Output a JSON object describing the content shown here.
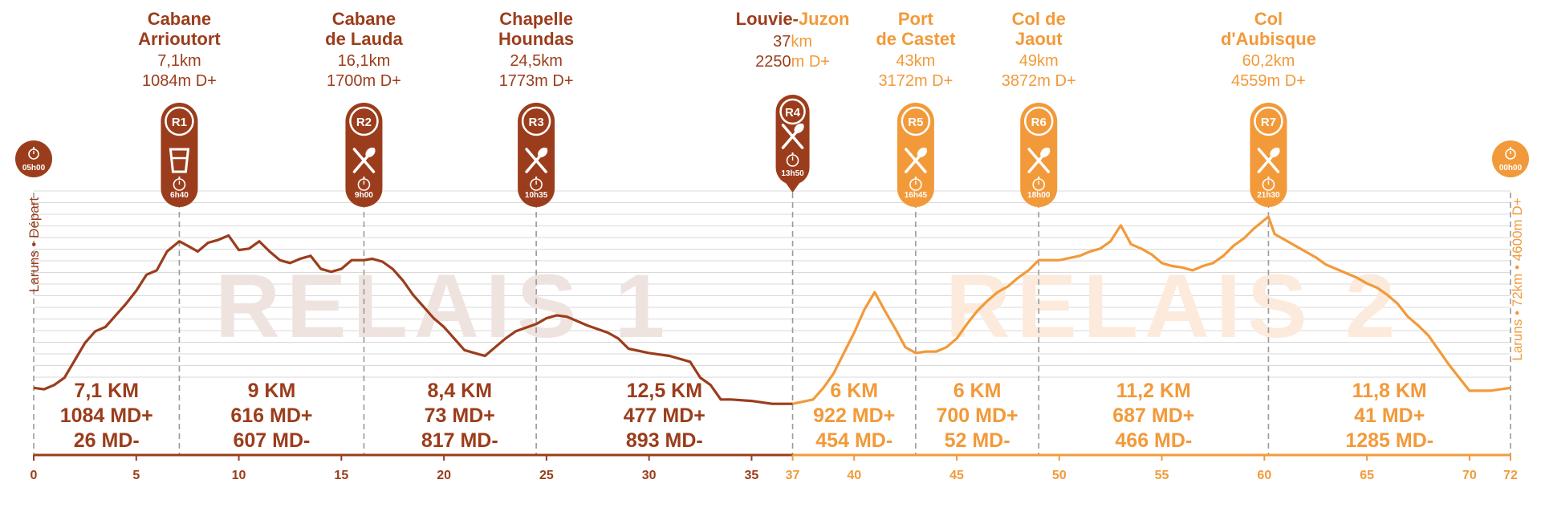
{
  "colors": {
    "leg1": "#9B3D1C",
    "leg2": "#F29A3A",
    "watermark1": "#EFE3E0",
    "watermark2": "#FCEBDD",
    "gridline": "#d9d9d9",
    "dashed": "#9a9a9a"
  },
  "watermarks": [
    "RELAIS 1",
    "RELAIS 2"
  ],
  "start_label": [
    "Laruns",
    "•",
    "Départ"
  ],
  "finish_label": [
    "Laruns",
    "•",
    "72km",
    "•",
    "4600m D+"
  ],
  "chart_data": {
    "type": "area",
    "x_ticks": [
      0,
      5,
      10,
      15,
      20,
      25,
      30,
      35,
      37,
      40,
      45,
      50,
      55,
      60,
      65,
      70,
      72
    ],
    "xlim": [
      0,
      72
    ],
    "leg_split_km": 37,
    "start_time": "05h00",
    "finish_time": "00h00",
    "profile": [
      [
        0,
        620
      ],
      [
        0.5,
        610
      ],
      [
        1,
        640
      ],
      [
        1.5,
        690
      ],
      [
        2,
        810
      ],
      [
        2.5,
        930
      ],
      [
        3,
        1010
      ],
      [
        3.5,
        1040
      ],
      [
        4,
        1120
      ],
      [
        4.5,
        1200
      ],
      [
        5,
        1290
      ],
      [
        5.5,
        1400
      ],
      [
        6,
        1430
      ],
      [
        6.5,
        1560
      ],
      [
        7.1,
        1630
      ],
      [
        7.5,
        1600
      ],
      [
        8,
        1560
      ],
      [
        8.5,
        1620
      ],
      [
        9,
        1640
      ],
      [
        9.5,
        1670
      ],
      [
        10,
        1570
      ],
      [
        10.5,
        1580
      ],
      [
        11,
        1630
      ],
      [
        11.5,
        1560
      ],
      [
        12,
        1500
      ],
      [
        12.5,
        1480
      ],
      [
        13,
        1510
      ],
      [
        13.5,
        1530
      ],
      [
        14,
        1440
      ],
      [
        14.5,
        1420
      ],
      [
        15,
        1440
      ],
      [
        15.5,
        1500
      ],
      [
        16.1,
        1500
      ],
      [
        16.5,
        1510
      ],
      [
        17,
        1490
      ],
      [
        17.5,
        1440
      ],
      [
        18,
        1360
      ],
      [
        18.5,
        1260
      ],
      [
        19,
        1180
      ],
      [
        19.5,
        1100
      ],
      [
        20,
        1040
      ],
      [
        20.5,
        960
      ],
      [
        21,
        880
      ],
      [
        21.5,
        860
      ],
      [
        22,
        840
      ],
      [
        22.5,
        900
      ],
      [
        23,
        960
      ],
      [
        23.5,
        1010
      ],
      [
        24.5,
        1060
      ],
      [
        25,
        1100
      ],
      [
        25.5,
        1120
      ],
      [
        26,
        1110
      ],
      [
        27,
        1050
      ],
      [
        28,
        1000
      ],
      [
        28.5,
        960
      ],
      [
        29,
        890
      ],
      [
        30,
        860
      ],
      [
        31,
        840
      ],
      [
        32,
        800
      ],
      [
        32.5,
        690
      ],
      [
        33,
        640
      ],
      [
        33.5,
        540
      ],
      [
        34,
        540
      ],
      [
        35,
        530
      ],
      [
        36,
        510
      ],
      [
        37,
        510
      ],
      [
        38,
        540
      ],
      [
        38.5,
        620
      ],
      [
        39,
        720
      ],
      [
        39.5,
        860
      ],
      [
        40,
        1000
      ],
      [
        40.5,
        1160
      ],
      [
        41,
        1280
      ],
      [
        41.5,
        1150
      ],
      [
        42,
        1030
      ],
      [
        42.5,
        900
      ],
      [
        43,
        860
      ],
      [
        43.5,
        870
      ],
      [
        44,
        870
      ],
      [
        44.5,
        900
      ],
      [
        45,
        960
      ],
      [
        45.5,
        1060
      ],
      [
        46,
        1150
      ],
      [
        46.5,
        1220
      ],
      [
        47,
        1280
      ],
      [
        47.5,
        1320
      ],
      [
        48,
        1380
      ],
      [
        48.5,
        1430
      ],
      [
        49,
        1500
      ],
      [
        50,
        1500
      ],
      [
        51,
        1530
      ],
      [
        51.5,
        1560
      ],
      [
        52,
        1580
      ],
      [
        52.5,
        1630
      ],
      [
        53,
        1740
      ],
      [
        53.5,
        1610
      ],
      [
        54,
        1580
      ],
      [
        54.5,
        1540
      ],
      [
        55,
        1480
      ],
      [
        55.5,
        1460
      ],
      [
        56,
        1450
      ],
      [
        56.5,
        1430
      ],
      [
        57,
        1460
      ],
      [
        57.5,
        1480
      ],
      [
        58,
        1530
      ],
      [
        58.5,
        1600
      ],
      [
        59,
        1650
      ],
      [
        59.5,
        1720
      ],
      [
        60.2,
        1800
      ],
      [
        60.5,
        1680
      ],
      [
        61,
        1640
      ],
      [
        61.5,
        1600
      ],
      [
        62,
        1560
      ],
      [
        62.5,
        1520
      ],
      [
        63,
        1470
      ],
      [
        63.5,
        1440
      ],
      [
        64,
        1410
      ],
      [
        64.5,
        1380
      ],
      [
        65,
        1340
      ],
      [
        65.5,
        1310
      ],
      [
        66,
        1260
      ],
      [
        66.5,
        1200
      ],
      [
        67,
        1110
      ],
      [
        67.5,
        1050
      ],
      [
        68,
        980
      ],
      [
        68.5,
        880
      ],
      [
        69,
        780
      ],
      [
        69.5,
        690
      ],
      [
        70,
        600
      ],
      [
        71,
        600
      ],
      [
        72,
        620
      ]
    ],
    "relais": [
      {
        "id": "R1",
        "km": 7.1,
        "leg": 1,
        "name": [
          "Cabane",
          "Arrioutort"
        ],
        "dist": "7,1km",
        "dplus": "1084m D+",
        "time": "6h40",
        "service": "drink"
      },
      {
        "id": "R2",
        "km": 16.1,
        "leg": 1,
        "name": [
          "Cabane",
          "de Lauda"
        ],
        "dist": "16,1km",
        "dplus": "1700m D+",
        "time": "9h00",
        "service": "food"
      },
      {
        "id": "R3",
        "km": 24.5,
        "leg": 1,
        "name": [
          "Chapelle",
          "Houndas"
        ],
        "dist": "24,5km",
        "dplus": "1773m D+",
        "time": "10h35",
        "service": "food"
      },
      {
        "id": "R4",
        "km": 37,
        "leg": 1,
        "name": [
          "Louvie-",
          "Juzon"
        ],
        "dist_num": "37",
        "dist_unit": "km",
        "dplus_num": "2250",
        "dplus_unit": "m D+",
        "time": "13h50",
        "service": "food"
      },
      {
        "id": "R5",
        "km": 43,
        "leg": 2,
        "name": [
          "Port",
          "de Castet"
        ],
        "dist": "43km",
        "dplus": "3172m D+",
        "time": "16h45",
        "service": "food"
      },
      {
        "id": "R6",
        "km": 49,
        "leg": 2,
        "name": [
          "Col de",
          "Jaout"
        ],
        "dist": "49km",
        "dplus": "3872m D+",
        "time": "18h00",
        "service": "food"
      },
      {
        "id": "R7",
        "km": 60.2,
        "leg": 2,
        "name": [
          "Col",
          "d'Aubisque"
        ],
        "dist": "60,2km",
        "dplus": "4559m D+",
        "time": "21h30",
        "service": "food"
      }
    ],
    "segments": [
      {
        "leg": 1,
        "from_km": 0,
        "to_km": 7.1,
        "distance": "7,1 KM",
        "dplus": "1084 MD+",
        "dminus": "26 MD-"
      },
      {
        "leg": 1,
        "from_km": 7.1,
        "to_km": 16.1,
        "distance": "9 KM",
        "dplus": "616 MD+",
        "dminus": "607 MD-"
      },
      {
        "leg": 1,
        "from_km": 16.1,
        "to_km": 24.5,
        "distance": "8,4 KM",
        "dplus": "73 MD+",
        "dminus": "817 MD-"
      },
      {
        "leg": 1,
        "from_km": 24.5,
        "to_km": 37,
        "distance": "12,5 KM",
        "dplus": "477 MD+",
        "dminus": "893 MD-"
      },
      {
        "leg": 2,
        "from_km": 37,
        "to_km": 43,
        "distance": "6 KM",
        "dplus": "922 MD+",
        "dminus": "454 MD-"
      },
      {
        "leg": 2,
        "from_km": 43,
        "to_km": 49,
        "distance": "6 KM",
        "dplus": "700 MD+",
        "dminus": "52 MD-"
      },
      {
        "leg": 2,
        "from_km": 49,
        "to_km": 60.2,
        "distance": "11,2 KM",
        "dplus": "687 MD+",
        "dminus": "466 MD-"
      },
      {
        "leg": 2,
        "from_km": 60.2,
        "to_km": 72,
        "distance": "11,8 KM",
        "dplus": "41 MD+",
        "dminus": "1285 MD-"
      }
    ]
  }
}
